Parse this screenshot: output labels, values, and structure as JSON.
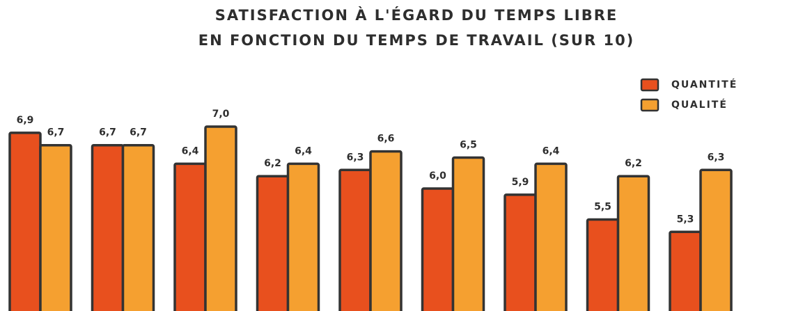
{
  "chart_data": {
    "type": "bar",
    "title": [
      "SATISFACTION À L'ÉGARD DU TEMPS LIBRE",
      "EN FONCTION DU TEMPS DE TRAVAIL (SUR 10)"
    ],
    "categories": [
      null,
      null,
      null,
      null,
      null,
      null,
      null,
      null,
      null
    ],
    "series": [
      {
        "name": "QUANTITÉ",
        "color": "#e8501e",
        "values": [
          6.9,
          6.7,
          6.4,
          6.2,
          6.3,
          6.0,
          5.9,
          5.5,
          5.3
        ],
        "value_labels": [
          "6,9",
          "6,7",
          "6,4",
          "6,2",
          "6,3",
          "6,0",
          "5,9",
          "5,5",
          "5,3"
        ]
      },
      {
        "name": "QUALITÉ",
        "color": "#f5a030",
        "values": [
          6.7,
          6.7,
          7.0,
          6.4,
          6.6,
          6.5,
          6.4,
          6.2,
          6.3
        ],
        "value_labels": [
          "6,7",
          "6,7",
          "7,0",
          "6,4",
          "6,6",
          "6,5",
          "6,4",
          "6,2",
          "6,3"
        ]
      }
    ],
    "ylim": [
      4,
      7
    ],
    "legend": "top-right"
  }
}
